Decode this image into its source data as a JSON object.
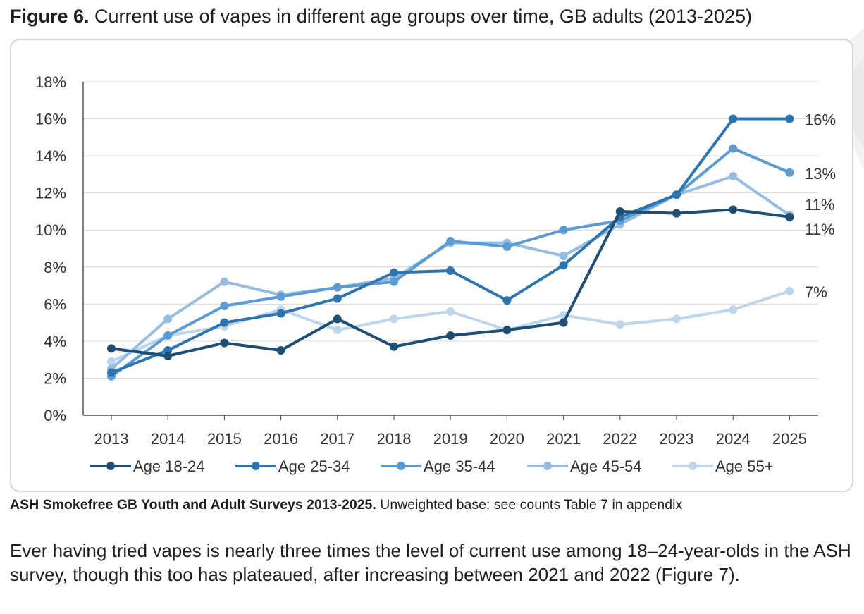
{
  "figure": {
    "label": "Figure 6.",
    "title": "Current use of vapes in different age groups over time, GB adults (2013-2025)"
  },
  "source": {
    "bold": "ASH Smokefree GB Youth and Adult Surveys 2013-2025.",
    "rest": "Unweighted base: see counts Table 7 in appendix"
  },
  "body_text": "Ever having tried vapes is nearly three times the level of current use among 18–24-year-olds in the ASH survey, though this too has plateaued, after increasing between 2021 and 2022 (Figure 7).",
  "chart_data": {
    "type": "line",
    "title": "",
    "xlabel": "",
    "ylabel": "",
    "ylim": [
      0,
      18
    ],
    "y_ticks": [
      "0%",
      "2%",
      "4%",
      "6%",
      "8%",
      "10%",
      "12%",
      "14%",
      "16%",
      "18%"
    ],
    "grid": "horizontal",
    "legend_position": "bottom",
    "categories": [
      "2013",
      "2014",
      "2015",
      "2016",
      "2017",
      "2018",
      "2019",
      "2020",
      "2021",
      "2022",
      "2023",
      "2024",
      "2025"
    ],
    "series": [
      {
        "name": "Age 18-24",
        "color": "#1f4e74",
        "values": [
          3.6,
          3.2,
          3.9,
          3.5,
          5.2,
          3.7,
          4.3,
          4.6,
          5.0,
          11.0,
          10.9,
          11.1,
          10.7
        ]
      },
      {
        "name": "Age 25-34",
        "color": "#2e75b0",
        "values": [
          2.3,
          3.5,
          5.0,
          5.5,
          6.3,
          7.7,
          7.8,
          6.2,
          8.1,
          10.7,
          11.9,
          16.0,
          16.0
        ]
      },
      {
        "name": "Age 35-44",
        "color": "#5b9bd1",
        "values": [
          2.1,
          4.3,
          5.9,
          6.4,
          6.9,
          7.2,
          9.4,
          9.1,
          10.0,
          10.5,
          11.9,
          14.4,
          13.1
        ]
      },
      {
        "name": "Age 45-54",
        "color": "#96bde0",
        "values": [
          2.5,
          5.2,
          7.2,
          6.5,
          6.9,
          7.4,
          9.3,
          9.3,
          8.6,
          10.3,
          11.9,
          12.9,
          10.8
        ]
      },
      {
        "name": "Age 55+",
        "color": "#bed6ec",
        "values": [
          2.9,
          4.3,
          4.8,
          5.7,
          4.6,
          5.2,
          5.6,
          4.6,
          5.4,
          4.9,
          5.2,
          5.7,
          6.7
        ]
      }
    ],
    "end_labels": [
      {
        "text": "16%",
        "series": "Age 25-34"
      },
      {
        "text": "13%",
        "series": "Age 35-44"
      },
      {
        "text": "11%",
        "series": "Age 45-54"
      },
      {
        "text": "11%",
        "series": "Age 18-24"
      },
      {
        "text": "7%",
        "series": "Age 55+"
      }
    ]
  }
}
